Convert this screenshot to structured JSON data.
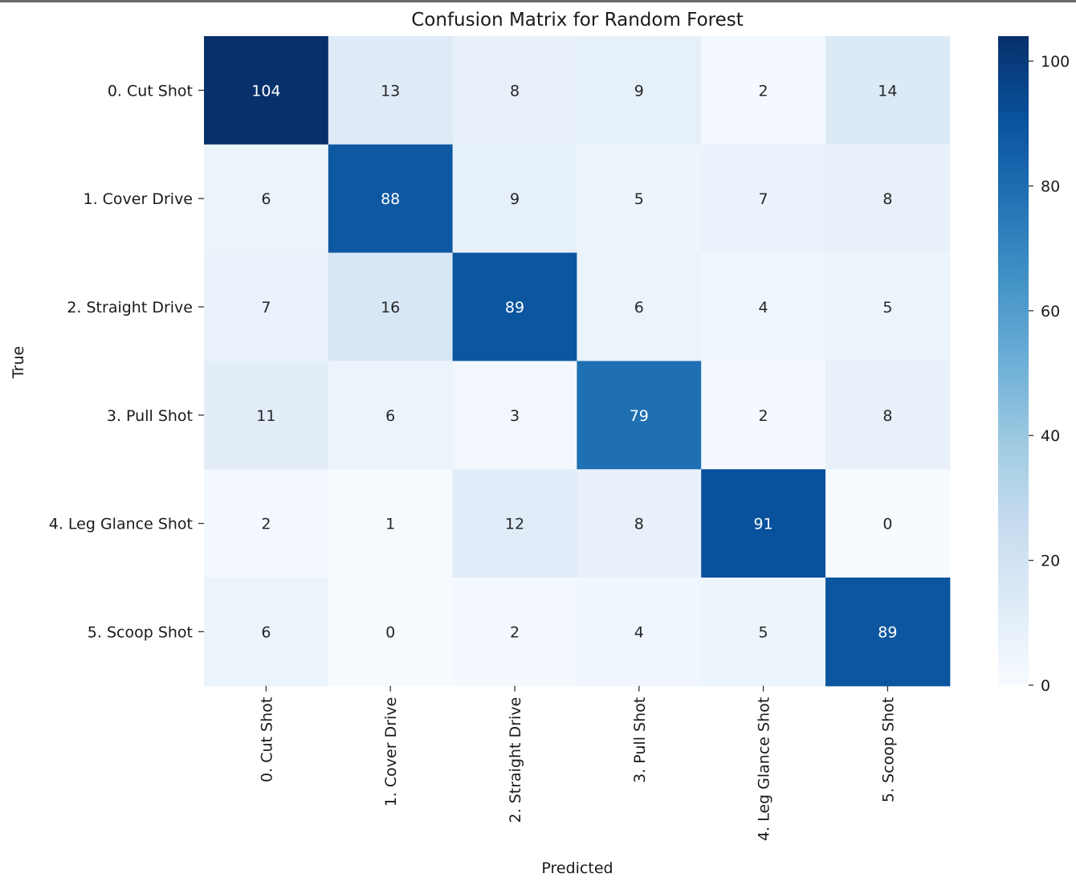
{
  "chart_data": {
    "type": "heatmap",
    "title": "Confusion Matrix for Random Forest",
    "xlabel": "Predicted",
    "ylabel": "True",
    "row_labels": [
      "0. Cut Shot",
      "1. Cover Drive",
      "2. Straight Drive",
      "3. Pull Shot",
      "4. Leg Glance Shot",
      "5. Scoop Shot"
    ],
    "col_labels": [
      "0. Cut Shot",
      "1. Cover Drive",
      "2. Straight Drive",
      "3. Pull Shot",
      "4. Leg Glance Shot",
      "5. Scoop Shot"
    ],
    "values": [
      [
        104,
        13,
        8,
        9,
        2,
        14
      ],
      [
        6,
        88,
        9,
        5,
        7,
        8
      ],
      [
        7,
        16,
        89,
        6,
        4,
        5
      ],
      [
        11,
        6,
        3,
        79,
        2,
        8
      ],
      [
        2,
        1,
        12,
        8,
        91,
        0
      ],
      [
        6,
        0,
        2,
        4,
        5,
        89
      ]
    ],
    "colormap": "Blues",
    "vmin": 0,
    "vmax": 104,
    "colorbar_ticks": [
      0,
      20,
      40,
      60,
      80,
      100
    ],
    "annotation_colors": {
      "light_text": "#ffffff",
      "dark_text": "#262626"
    }
  }
}
